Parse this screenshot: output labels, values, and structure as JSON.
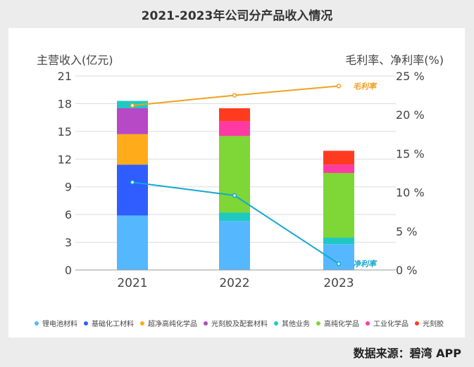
{
  "page": {
    "title": "2021-2023年公司分产品收入情况",
    "source": "数据来源：碧湾 APP",
    "background": "#ececec"
  },
  "chart_data": {
    "type": "bar",
    "stacked": true,
    "title": "2021-2023年公司分产品收入情况",
    "categories": [
      "2021",
      "2022",
      "2023"
    ],
    "ylabel": "主营收入(亿元)",
    "ylim": [
      0,
      21
    ],
    "yticks": [
      0,
      3,
      6,
      9,
      12,
      15,
      18,
      21
    ],
    "y2label": "毛利率、净利率(%)",
    "y2lim": [
      0,
      25
    ],
    "y2ticks": [
      0,
      5,
      10,
      15,
      20,
      25
    ],
    "y2tick_suffix": " %",
    "legend_position": "bottom",
    "series": [
      {
        "name": "锂电池材料",
        "color": "#55b8ff",
        "values": [
          5.9,
          5.3,
          2.8
        ]
      },
      {
        "name": "基础化工材料",
        "color": "#2f5dff",
        "values": [
          5.5,
          0,
          0
        ]
      },
      {
        "name": "超净高纯化学品",
        "color": "#ffab1a",
        "values": [
          3.3,
          0,
          0
        ]
      },
      {
        "name": "光刻胶及配套材料",
        "color": "#b748c6",
        "values": [
          2.8,
          0,
          0
        ]
      },
      {
        "name": "其他业务",
        "color": "#1fc9c1",
        "values": [
          0.8,
          0.9,
          0.7
        ]
      },
      {
        "name": "高纯化学品",
        "color": "#7fd637",
        "values": [
          0,
          8.3,
          7.0
        ]
      },
      {
        "name": "工业化学品",
        "color": "#ff3aa2",
        "values": [
          0,
          1.6,
          0.9
        ]
      },
      {
        "name": "光刻胶",
        "color": "#ff3b1f",
        "values": [
          0,
          1.4,
          1.5
        ]
      }
    ],
    "lines": [
      {
        "name": "毛利率",
        "label": "毛利率",
        "color": "#f0a020",
        "axis": "right",
        "values": [
          21.2,
          22.5,
          23.7
        ]
      },
      {
        "name": "净利率",
        "label": "净利率",
        "color": "#13a8d1",
        "axis": "right",
        "values": [
          11.3,
          9.6,
          0.8
        ]
      }
    ]
  }
}
